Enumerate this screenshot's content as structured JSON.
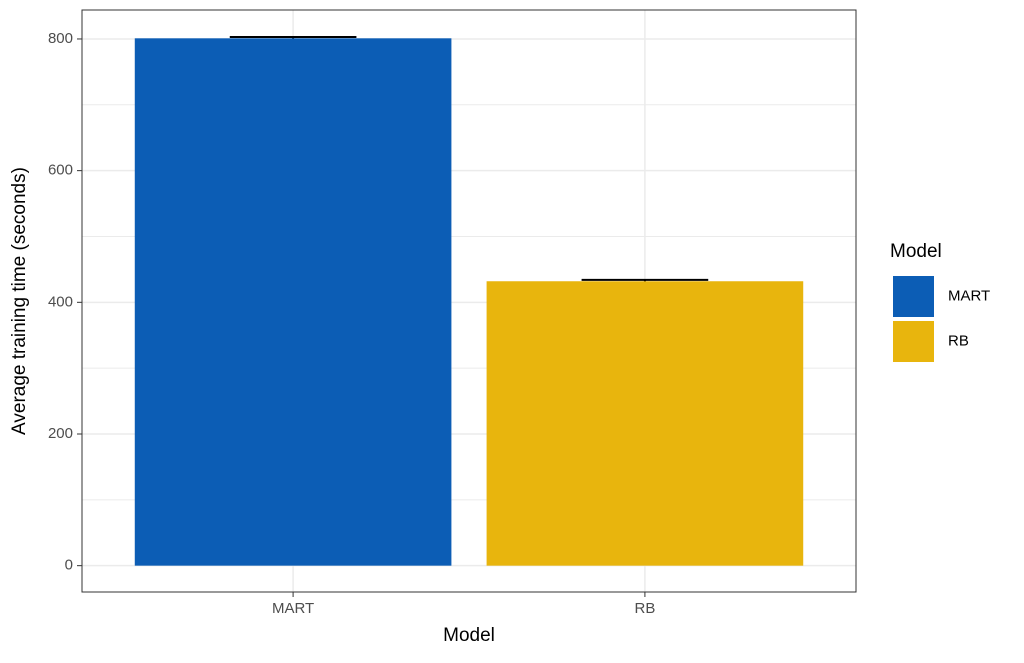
{
  "chart_data": {
    "type": "bar",
    "x_label": "Model",
    "y_label": "Average training time (seconds)",
    "categories": [
      "MART",
      "RB"
    ],
    "values": [
      801,
      432
    ],
    "errors": [
      2,
      2
    ],
    "colors": [
      "#0c5db5",
      "#e8b50d"
    ],
    "ylim": [
      -40,
      844
    ],
    "yticks": [
      0,
      200,
      400,
      600,
      800
    ],
    "minor_yticks": [
      100,
      300,
      500,
      700
    ],
    "grid": true,
    "legend": {
      "title": "Model",
      "position": "right"
    }
  }
}
